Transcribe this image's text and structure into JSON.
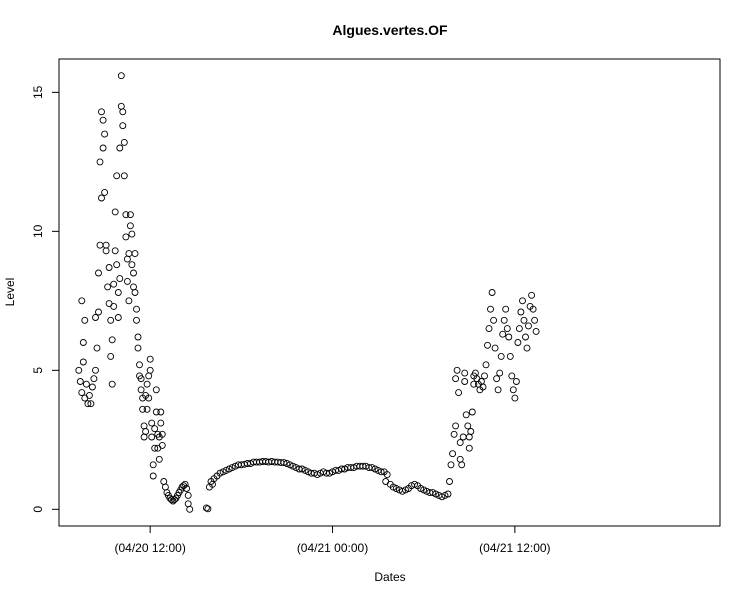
{
  "chart_data": {
    "type": "scatter",
    "title": "Algues.vertes.OF",
    "xlabel": "Dates",
    "ylabel": "Level",
    "x_units": "hours since 04/20 00:00",
    "xlim": [
      6,
      49.5
    ],
    "ylim": [
      -0.6,
      16.2
    ],
    "x_ticks": [
      {
        "value": 12,
        "label": "(04/20 12:00)"
      },
      {
        "value": 24,
        "label": "(04/21 00:00)"
      },
      {
        "value": 36,
        "label": "(04/21 12:00)"
      }
    ],
    "y_ticks": [
      {
        "value": 0,
        "label": "0"
      },
      {
        "value": 5,
        "label": "5"
      },
      {
        "value": 10,
        "label": "10"
      },
      {
        "value": 15,
        "label": "15"
      }
    ],
    "grid": false,
    "legend": "none",
    "marker": "open-circle",
    "colors": {
      "points": "#000000",
      "axes": "#000000",
      "background": "#ffffff"
    },
    "points": [
      [
        7.3,
        5.0
      ],
      [
        7.4,
        4.6
      ],
      [
        7.5,
        4.2
      ],
      [
        7.5,
        7.5
      ],
      [
        7.6,
        6.0
      ],
      [
        7.6,
        5.3
      ],
      [
        7.7,
        4.0
      ],
      [
        7.7,
        6.8
      ],
      [
        7.8,
        4.5
      ],
      [
        7.9,
        3.8
      ],
      [
        8.0,
        4.1
      ],
      [
        8.1,
        3.8
      ],
      [
        8.2,
        4.4
      ],
      [
        8.3,
        4.7
      ],
      [
        8.4,
        6.9
      ],
      [
        8.4,
        5.0
      ],
      [
        8.5,
        5.8
      ],
      [
        8.6,
        7.1
      ],
      [
        8.6,
        8.5
      ],
      [
        8.7,
        9.5
      ],
      [
        8.7,
        12.5
      ],
      [
        8.8,
        11.2
      ],
      [
        8.8,
        14.3
      ],
      [
        8.9,
        13.0
      ],
      [
        8.9,
        14.0
      ],
      [
        9.0,
        11.4
      ],
      [
        9.0,
        13.5
      ],
      [
        9.1,
        9.3
      ],
      [
        9.1,
        9.5
      ],
      [
        9.2,
        8.0
      ],
      [
        9.3,
        8.7
      ],
      [
        9.3,
        7.4
      ],
      [
        9.4,
        6.8
      ],
      [
        9.4,
        5.5
      ],
      [
        9.5,
        4.5
      ],
      [
        9.5,
        6.1
      ],
      [
        9.6,
        7.3
      ],
      [
        9.6,
        8.1
      ],
      [
        9.7,
        9.3
      ],
      [
        9.7,
        10.7
      ],
      [
        9.8,
        12.0
      ],
      [
        9.8,
        8.8
      ],
      [
        9.9,
        7.8
      ],
      [
        9.9,
        6.9
      ],
      [
        10.0,
        8.3
      ],
      [
        10.0,
        13.0
      ],
      [
        10.1,
        14.5
      ],
      [
        10.1,
        15.6
      ],
      [
        10.2,
        14.3
      ],
      [
        10.2,
        13.8
      ],
      [
        10.3,
        13.2
      ],
      [
        10.3,
        12.0
      ],
      [
        10.4,
        10.6
      ],
      [
        10.4,
        9.8
      ],
      [
        10.5,
        9.0
      ],
      [
        10.5,
        8.2
      ],
      [
        10.6,
        7.5
      ],
      [
        10.6,
        9.2
      ],
      [
        10.7,
        10.6
      ],
      [
        10.7,
        10.2
      ],
      [
        10.8,
        9.9
      ],
      [
        10.8,
        8.8
      ],
      [
        10.9,
        8.5
      ],
      [
        10.9,
        8.0
      ],
      [
        11.0,
        9.2
      ],
      [
        11.0,
        7.8
      ],
      [
        11.1,
        7.2
      ],
      [
        11.1,
        6.8
      ],
      [
        11.2,
        6.2
      ],
      [
        11.2,
        5.8
      ],
      [
        11.3,
        5.2
      ],
      [
        11.3,
        4.8
      ],
      [
        11.4,
        4.3
      ],
      [
        11.4,
        4.7
      ],
      [
        11.5,
        4.0
      ],
      [
        11.5,
        3.6
      ],
      [
        11.6,
        3.0
      ],
      [
        11.6,
        2.6
      ],
      [
        11.7,
        2.8
      ],
      [
        11.7,
        4.1
      ],
      [
        11.8,
        4.5
      ],
      [
        11.8,
        3.6
      ],
      [
        11.9,
        4.0
      ],
      [
        11.9,
        4.8
      ],
      [
        12.0,
        5.4
      ],
      [
        12.0,
        5.0
      ],
      [
        12.1,
        3.1
      ],
      [
        12.1,
        2.6
      ],
      [
        12.2,
        1.6
      ],
      [
        12.2,
        1.2
      ],
      [
        12.3,
        2.2
      ],
      [
        12.3,
        2.9
      ],
      [
        12.4,
        3.5
      ],
      [
        12.4,
        4.3
      ],
      [
        12.5,
        2.7
      ],
      [
        12.5,
        2.2
      ],
      [
        12.6,
        1.8
      ],
      [
        12.6,
        2.6
      ],
      [
        12.7,
        3.1
      ],
      [
        12.7,
        3.5
      ],
      [
        12.8,
        2.3
      ],
      [
        12.8,
        2.7
      ],
      [
        12.9,
        1.0
      ],
      [
        13.0,
        0.8
      ],
      [
        13.1,
        0.6
      ],
      [
        13.2,
        0.5
      ],
      [
        13.3,
        0.4
      ],
      [
        13.4,
        0.35
      ],
      [
        13.5,
        0.3
      ],
      [
        13.6,
        0.35
      ],
      [
        13.7,
        0.4
      ],
      [
        13.8,
        0.5
      ],
      [
        13.9,
        0.6
      ],
      [
        14.0,
        0.7
      ],
      [
        14.1,
        0.8
      ],
      [
        14.2,
        0.85
      ],
      [
        14.3,
        0.9
      ],
      [
        14.4,
        0.75
      ],
      [
        14.5,
        0.5
      ],
      [
        14.5,
        0.2
      ],
      [
        14.6,
        0.0
      ],
      [
        15.7,
        0.05
      ],
      [
        15.8,
        0.02
      ],
      [
        15.9,
        0.8
      ],
      [
        16.0,
        1.0
      ],
      [
        16.1,
        0.9
      ],
      [
        16.2,
        1.1
      ],
      [
        16.4,
        1.2
      ],
      [
        16.6,
        1.3
      ],
      [
        16.8,
        1.35
      ],
      [
        17.0,
        1.4
      ],
      [
        17.2,
        1.45
      ],
      [
        17.4,
        1.5
      ],
      [
        17.6,
        1.55
      ],
      [
        17.8,
        1.6
      ],
      [
        18.0,
        1.6
      ],
      [
        18.2,
        1.62
      ],
      [
        18.4,
        1.65
      ],
      [
        18.6,
        1.65
      ],
      [
        18.8,
        1.7
      ],
      [
        19.0,
        1.7
      ],
      [
        19.2,
        1.7
      ],
      [
        19.4,
        1.72
      ],
      [
        19.6,
        1.72
      ],
      [
        19.8,
        1.7
      ],
      [
        20.0,
        1.72
      ],
      [
        20.2,
        1.7
      ],
      [
        20.4,
        1.7
      ],
      [
        20.6,
        1.68
      ],
      [
        20.8,
        1.68
      ],
      [
        21.0,
        1.65
      ],
      [
        21.2,
        1.6
      ],
      [
        21.4,
        1.55
      ],
      [
        21.6,
        1.5
      ],
      [
        21.8,
        1.45
      ],
      [
        22.0,
        1.45
      ],
      [
        22.2,
        1.4
      ],
      [
        22.4,
        1.35
      ],
      [
        22.6,
        1.3
      ],
      [
        22.8,
        1.3
      ],
      [
        23.0,
        1.25
      ],
      [
        23.2,
        1.3
      ],
      [
        23.4,
        1.35
      ],
      [
        23.6,
        1.3
      ],
      [
        23.8,
        1.3
      ],
      [
        24.0,
        1.35
      ],
      [
        24.2,
        1.4
      ],
      [
        24.4,
        1.4
      ],
      [
        24.6,
        1.45
      ],
      [
        24.8,
        1.45
      ],
      [
        25.0,
        1.5
      ],
      [
        25.2,
        1.5
      ],
      [
        25.4,
        1.5
      ],
      [
        25.6,
        1.55
      ],
      [
        25.8,
        1.55
      ],
      [
        26.0,
        1.55
      ],
      [
        26.2,
        1.55
      ],
      [
        26.4,
        1.5
      ],
      [
        26.6,
        1.5
      ],
      [
        26.8,
        1.45
      ],
      [
        27.0,
        1.4
      ],
      [
        27.2,
        1.35
      ],
      [
        27.4,
        1.35
      ],
      [
        27.5,
        1.0
      ],
      [
        27.6,
        1.25
      ],
      [
        27.8,
        0.9
      ],
      [
        28.0,
        0.8
      ],
      [
        28.2,
        0.75
      ],
      [
        28.4,
        0.7
      ],
      [
        28.6,
        0.65
      ],
      [
        28.8,
        0.7
      ],
      [
        29.0,
        0.75
      ],
      [
        29.2,
        0.85
      ],
      [
        29.4,
        0.9
      ],
      [
        29.6,
        0.85
      ],
      [
        29.8,
        0.75
      ],
      [
        30.0,
        0.7
      ],
      [
        30.2,
        0.65
      ],
      [
        30.4,
        0.6
      ],
      [
        30.6,
        0.6
      ],
      [
        30.8,
        0.55
      ],
      [
        31.0,
        0.5
      ],
      [
        31.2,
        0.45
      ],
      [
        31.4,
        0.5
      ],
      [
        31.6,
        0.55
      ],
      [
        31.7,
        1.0
      ],
      [
        31.8,
        1.6
      ],
      [
        31.9,
        2.0
      ],
      [
        32.0,
        2.7
      ],
      [
        32.1,
        3.0
      ],
      [
        32.1,
        4.7
      ],
      [
        32.2,
        5.0
      ],
      [
        32.3,
        4.2
      ],
      [
        32.4,
        2.4
      ],
      [
        32.4,
        1.8
      ],
      [
        32.5,
        1.6
      ],
      [
        32.6,
        2.6
      ],
      [
        32.7,
        4.6
      ],
      [
        32.7,
        4.9
      ],
      [
        32.8,
        3.4
      ],
      [
        32.9,
        3.0
      ],
      [
        33.0,
        2.6
      ],
      [
        33.0,
        2.2
      ],
      [
        33.1,
        2.8
      ],
      [
        33.2,
        3.5
      ],
      [
        33.3,
        4.5
      ],
      [
        33.3,
        4.8
      ],
      [
        33.4,
        4.9
      ],
      [
        33.5,
        4.7
      ],
      [
        33.6,
        4.5
      ],
      [
        33.7,
        4.3
      ],
      [
        33.8,
        4.6
      ],
      [
        33.9,
        4.4
      ],
      [
        34.0,
        4.8
      ],
      [
        34.1,
        5.2
      ],
      [
        34.2,
        5.9
      ],
      [
        34.3,
        6.5
      ],
      [
        34.4,
        7.2
      ],
      [
        34.5,
        7.8
      ],
      [
        34.6,
        6.8
      ],
      [
        34.7,
        5.8
      ],
      [
        34.8,
        4.7
      ],
      [
        34.9,
        4.3
      ],
      [
        35.0,
        4.9
      ],
      [
        35.1,
        5.5
      ],
      [
        35.2,
        6.3
      ],
      [
        35.3,
        6.8
      ],
      [
        35.4,
        7.2
      ],
      [
        35.5,
        6.5
      ],
      [
        35.6,
        6.2
      ],
      [
        35.7,
        5.5
      ],
      [
        35.8,
        4.8
      ],
      [
        35.9,
        4.3
      ],
      [
        36.0,
        4.0
      ],
      [
        36.1,
        4.6
      ],
      [
        36.2,
        6.0
      ],
      [
        36.3,
        6.5
      ],
      [
        36.4,
        7.1
      ],
      [
        36.5,
        7.5
      ],
      [
        36.6,
        6.8
      ],
      [
        36.7,
        6.2
      ],
      [
        36.8,
        5.8
      ],
      [
        36.9,
        6.6
      ],
      [
        37.0,
        7.3
      ],
      [
        37.1,
        7.7
      ],
      [
        37.2,
        7.2
      ],
      [
        37.3,
        6.8
      ],
      [
        37.4,
        6.4
      ]
    ]
  }
}
